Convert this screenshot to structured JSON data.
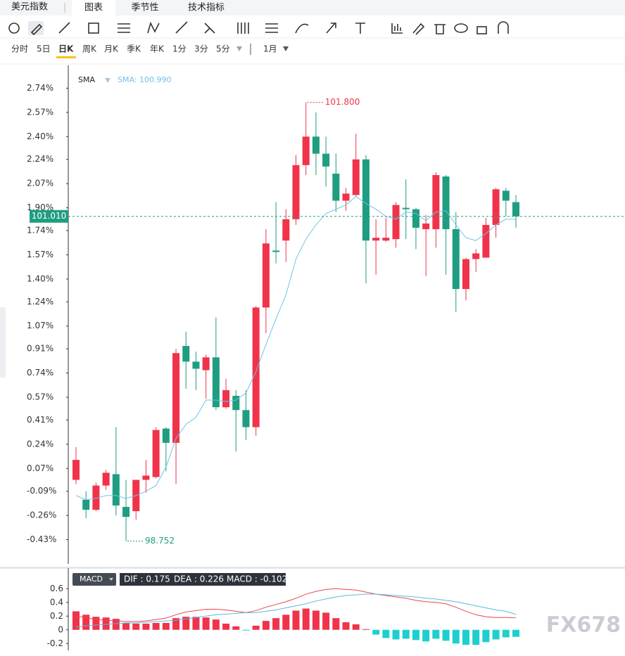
{
  "header": {
    "title": "美元指数",
    "tabs": [
      "图表",
      "季节性",
      "技术指标"
    ],
    "active_tab": 0
  },
  "periods": [
    "分时",
    "5日",
    "日K",
    "周K",
    "月K",
    "季K",
    "年K",
    "1分",
    "3分",
    "5分",
    "1月"
  ],
  "active_period": 2,
  "watermark": "FX678",
  "chart_data": [
    {
      "type": "candlestick",
      "up_color": "#f0334a",
      "down_color": "#1f9d80",
      "open": [
        -0.01,
        -0.15,
        -0.22,
        -0.05,
        0.03,
        -0.2,
        -0.23,
        -0.01,
        0.01,
        0.35,
        0.25,
        0.93,
        0.82,
        0.76,
        0.85,
        0.5,
        0.58,
        0.48,
        0.36,
        1.2,
        1.6,
        1.67,
        1.82,
        2.2,
        2.4,
        2.28,
        2.14,
        1.95,
        1.99,
        2.24,
        1.67,
        1.67,
        1.68,
        1.9,
        1.89,
        1.75,
        1.75,
        2.12,
        1.75,
        1.33,
        1.54,
        1.55,
        1.78,
        2.02,
        1.94
      ],
      "close": [
        0.13,
        -0.22,
        -0.05,
        0.04,
        -0.19,
        -0.27,
        -0.01,
        0.02,
        0.34,
        0.25,
        0.88,
        0.82,
        0.77,
        0.85,
        0.5,
        0.62,
        0.48,
        0.36,
        1.2,
        1.65,
        1.59,
        1.82,
        2.2,
        2.4,
        2.28,
        2.19,
        1.95,
        2.0,
        2.24,
        1.67,
        1.69,
        1.69,
        1.92,
        1.89,
        1.76,
        1.79,
        2.13,
        1.75,
        1.33,
        1.54,
        1.58,
        1.78,
        2.03,
        1.95,
        1.84
      ],
      "high": [
        0.22,
        -0.09,
        -0.03,
        0.06,
        0.36,
        -0.01,
        -0.01,
        0.13,
        0.36,
        0.36,
        0.91,
        1.03,
        0.89,
        0.87,
        1.13,
        0.7,
        0.62,
        0.62,
        1.21,
        1.75,
        1.94,
        1.89,
        2.27,
        2.64,
        2.57,
        2.4,
        2.28,
        2.04,
        2.42,
        2.27,
        1.82,
        1.83,
        1.94,
        2.1,
        1.9,
        1.85,
        2.15,
        2.13,
        1.87,
        1.55,
        1.61,
        1.83,
        2.04,
        2.04,
        1.99
      ],
      "low": [
        -0.04,
        -0.28,
        -0.23,
        -0.08,
        -0.26,
        -0.44,
        -0.29,
        -0.1,
        0.0,
        0.05,
        -0.04,
        0.63,
        0.62,
        0.56,
        0.48,
        0.49,
        0.19,
        0.27,
        0.3,
        1.02,
        1.51,
        1.52,
        1.78,
        2.13,
        2.13,
        2.05,
        1.87,
        1.88,
        1.98,
        1.37,
        1.43,
        1.66,
        1.62,
        1.68,
        1.61,
        1.42,
        1.62,
        1.43,
        1.17,
        1.25,
        1.45,
        1.55,
        1.69,
        1.84,
        1.76
      ],
      "overlay": {
        "name": "SMA",
        "label": "SMA: 100.990",
        "color": "#6fc3e8",
        "values": [
          -0.12,
          -0.15,
          -0.14,
          -0.12,
          -0.12,
          -0.14,
          -0.12,
          -0.09,
          -0.05,
          0.08,
          0.28,
          0.38,
          0.43,
          0.55,
          0.55,
          0.54,
          0.55,
          0.6,
          0.75,
          0.94,
          1.12,
          1.29,
          1.54,
          1.68,
          1.78,
          1.86,
          1.89,
          1.92,
          1.98,
          1.93,
          1.89,
          1.84,
          1.82,
          1.87,
          1.86,
          1.81,
          1.87,
          1.88,
          1.78,
          1.69,
          1.67,
          1.72,
          1.78,
          1.82,
          1.82
        ]
      },
      "max_label": "101.800",
      "min_label": "98.752",
      "last_price": 1.84,
      "last_price_label": "101.010",
      "ylim": [
        -0.6,
        2.9
      ],
      "yticks": [
        {
          "value": 2.74,
          "label": "2.74%"
        },
        {
          "value": 2.57,
          "label": "2.57%"
        },
        {
          "value": 2.4,
          "label": "2.40%"
        },
        {
          "value": 2.24,
          "label": "2.24%"
        },
        {
          "value": 2.07,
          "label": "2.07%"
        },
        {
          "value": 1.9,
          "label": "1.90%"
        },
        {
          "value": 1.74,
          "label": "1.74%"
        },
        {
          "value": 1.57,
          "label": "1.57%"
        },
        {
          "value": 1.4,
          "label": "1.40%"
        },
        {
          "value": 1.24,
          "label": "1.24%"
        },
        {
          "value": 1.07,
          "label": "1.07%"
        },
        {
          "value": 0.91,
          "label": "0.91%"
        },
        {
          "value": 0.74,
          "label": "0.74%"
        },
        {
          "value": 0.57,
          "label": "0.57%"
        },
        {
          "value": 0.41,
          "label": "0.41%"
        },
        {
          "value": 0.24,
          "label": "0.24%"
        },
        {
          "value": 0.07,
          "label": "0.07%"
        },
        {
          "value": -0.09,
          "label": "-0.09%"
        },
        {
          "value": -0.26,
          "label": "-0.26%"
        },
        {
          "value": -0.43,
          "label": "-0.43%"
        }
      ]
    },
    {
      "type": "macd",
      "title": "MACD",
      "ylim": [
        -0.3,
        0.9
      ],
      "yticks": [
        0.6,
        0.4,
        0.2,
        0,
        -0.2
      ],
      "series": [
        {
          "name": "DIF : 0.175",
          "color": "#e8474f",
          "values": [
            0.2,
            0.18,
            0.15,
            0.14,
            0.13,
            0.12,
            0.12,
            0.13,
            0.15,
            0.17,
            0.22,
            0.26,
            0.28,
            0.3,
            0.3,
            0.29,
            0.27,
            0.25,
            0.28,
            0.33,
            0.37,
            0.41,
            0.46,
            0.52,
            0.56,
            0.59,
            0.6,
            0.59,
            0.58,
            0.55,
            0.52,
            0.5,
            0.48,
            0.46,
            0.43,
            0.41,
            0.4,
            0.38,
            0.33,
            0.27,
            0.22,
            0.19,
            0.18,
            0.18,
            0.175
          ]
        },
        {
          "name": "DEA : 0.226",
          "color": "#5ab8e0",
          "values": [
            0.04,
            0.06,
            0.07,
            0.08,
            0.09,
            0.1,
            0.1,
            0.11,
            0.12,
            0.13,
            0.14,
            0.16,
            0.18,
            0.2,
            0.22,
            0.23,
            0.24,
            0.25,
            0.25,
            0.27,
            0.29,
            0.32,
            0.35,
            0.38,
            0.42,
            0.45,
            0.48,
            0.5,
            0.51,
            0.52,
            0.52,
            0.51,
            0.5,
            0.49,
            0.48,
            0.46,
            0.45,
            0.43,
            0.41,
            0.38,
            0.35,
            0.32,
            0.29,
            0.27,
            0.226
          ]
        },
        {
          "name": "MACD : -0.102",
          "type": "bar",
          "pos_color": "#f0334a",
          "neg_color": "#1fcfcf",
          "values": [
            0.27,
            0.22,
            0.19,
            0.18,
            0.16,
            0.1,
            0.09,
            0.09,
            0.1,
            0.1,
            0.17,
            0.19,
            0.19,
            0.18,
            0.15,
            0.09,
            0.05,
            -0.01,
            0.06,
            0.13,
            0.17,
            0.22,
            0.28,
            0.31,
            0.28,
            0.25,
            0.17,
            0.11,
            0.08,
            0.01,
            -0.07,
            -0.12,
            -0.14,
            -0.13,
            -0.15,
            -0.17,
            -0.13,
            -0.16,
            -0.2,
            -0.22,
            -0.22,
            -0.18,
            -0.14,
            -0.11,
            -0.102
          ]
        }
      ]
    }
  ]
}
